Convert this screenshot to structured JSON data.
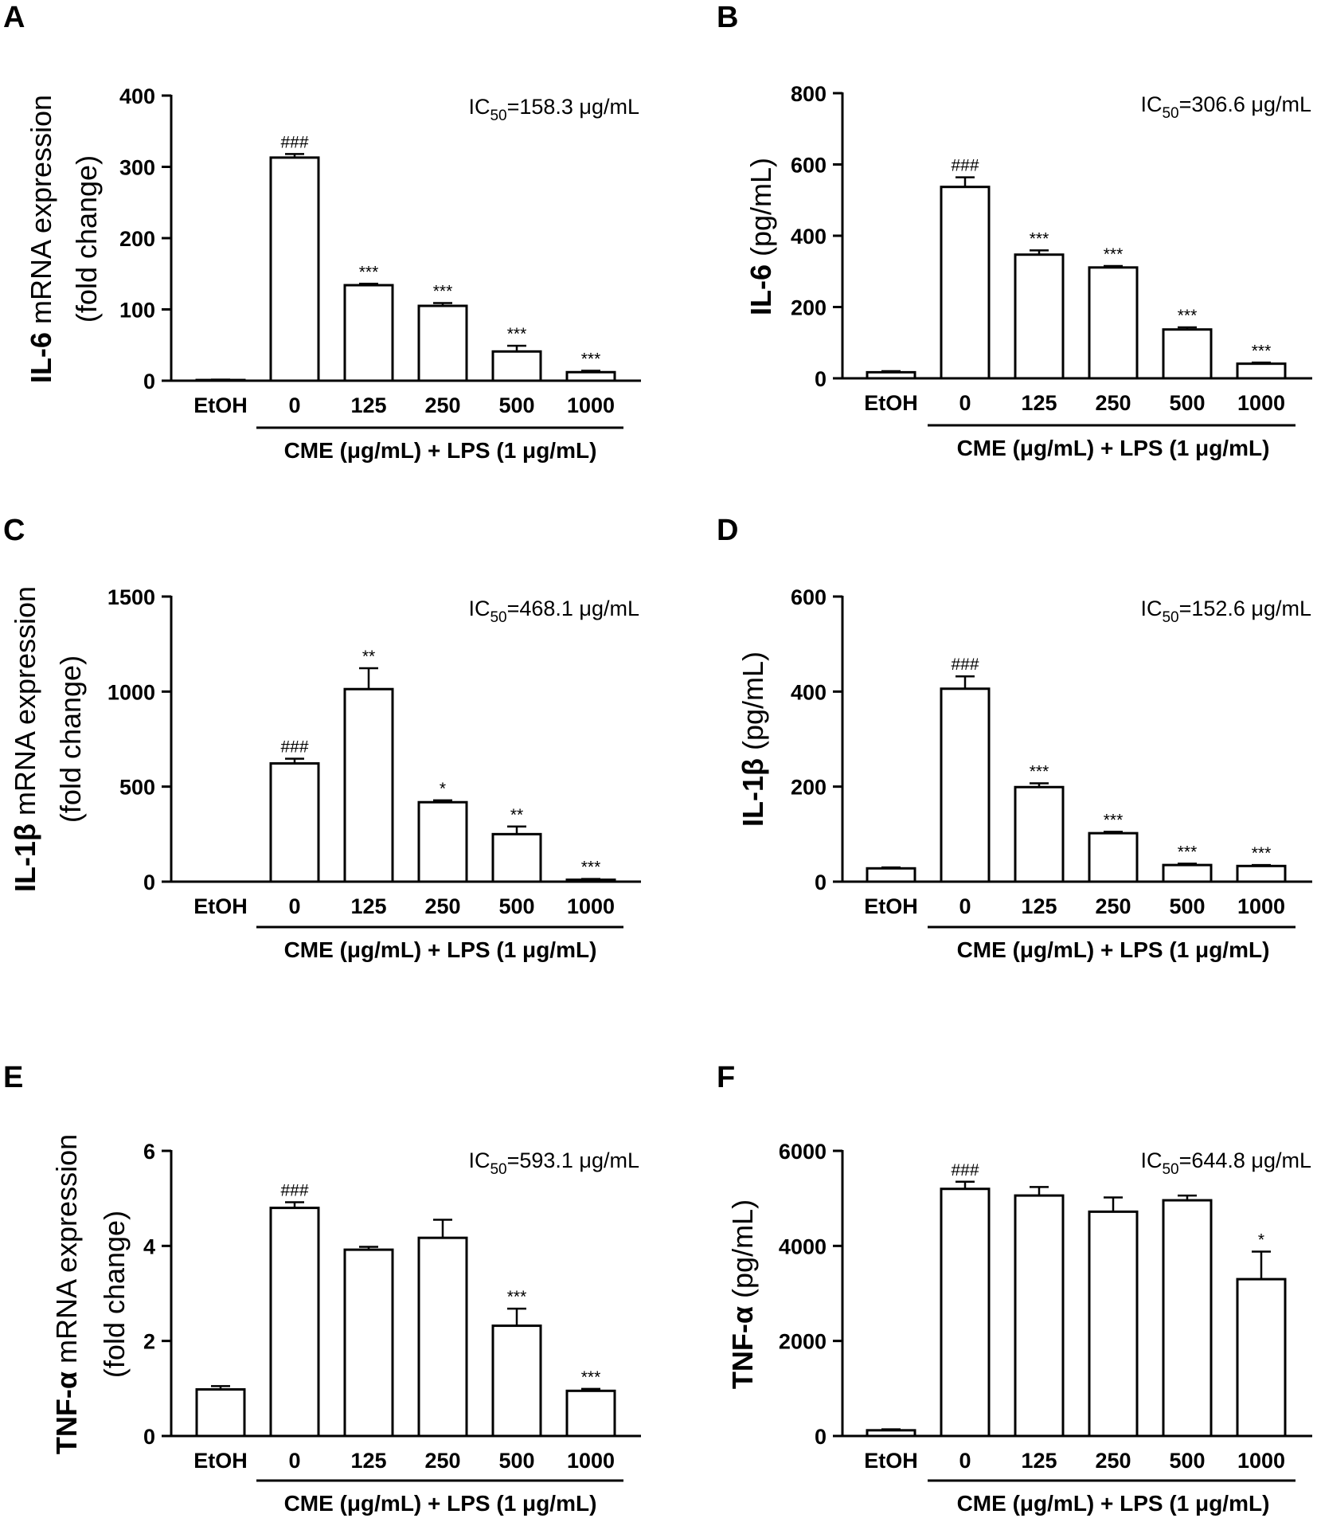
{
  "chart_data": [
    {
      "type": "bar",
      "panel": "A",
      "categories": [
        "EtOH",
        "0",
        "125",
        "250",
        "500",
        "1000"
      ],
      "values": [
        1,
        313,
        134,
        105,
        41,
        12
      ],
      "errors": [
        0.5,
        5,
        2,
        4,
        8,
        2
      ],
      "significance": [
        "",
        "###",
        "***",
        "***",
        "***",
        "***"
      ],
      "ylabel_bold": "IL-6",
      "ylabel_rest": " mRNA expression",
      "ylabel_line2": "(fold change)",
      "ylim": [
        0,
        400
      ],
      "yticks": [
        0,
        100,
        200,
        300,
        400
      ],
      "ic50": {
        "prefix": "IC",
        "sub": "50",
        "value": "=158.3 μg/mL"
      },
      "group_label": "CME (μg/mL) + LPS (1 μg/mL)"
    },
    {
      "type": "bar",
      "panel": "B",
      "categories": [
        "EtOH",
        "0",
        "125",
        "250",
        "500",
        "1000"
      ],
      "values": [
        17,
        537,
        347,
        311,
        137,
        41
      ],
      "errors": [
        3,
        27,
        12,
        4,
        6,
        3
      ],
      "significance": [
        "",
        "###",
        "***",
        "***",
        "***",
        "***"
      ],
      "ylabel_bold": "IL-6",
      "ylabel_rest": " (pg/mL)",
      "ylabel_line2": "",
      "ylim": [
        0,
        800
      ],
      "yticks": [
        0,
        200,
        400,
        600,
        800
      ],
      "ic50": {
        "prefix": "IC",
        "sub": "50",
        "value": "=306.6 μg/mL"
      },
      "group_label": "CME (μg/mL) + LPS (1 μg/mL)"
    },
    {
      "type": "bar",
      "panel": "C",
      "categories": [
        "EtOH",
        "0",
        "125",
        "250",
        "500",
        "1000"
      ],
      "values": [
        0,
        622,
        1013,
        418,
        250,
        10
      ],
      "errors": [
        0,
        25,
        110,
        10,
        40,
        4
      ],
      "significance": [
        "",
        "###",
        "**",
        "*",
        "**",
        "***"
      ],
      "ylabel_bold": "IL-1β",
      "ylabel_rest": " mRNA expression",
      "ylabel_line2": "(fold change)",
      "ylim": [
        0,
        1500
      ],
      "yticks": [
        0,
        500,
        1000,
        1500
      ],
      "ic50": {
        "prefix": "IC",
        "sub": "50",
        "value": "=468.1 μg/mL"
      },
      "group_label": "CME (μg/mL) + LPS (1 μg/mL)"
    },
    {
      "type": "bar",
      "panel": "D",
      "categories": [
        "EtOH",
        "0",
        "125",
        "250",
        "500",
        "1000"
      ],
      "values": [
        28,
        406,
        199,
        102,
        35,
        33
      ],
      "errors": [
        2,
        26,
        8,
        3,
        3,
        2
      ],
      "significance": [
        "",
        "###",
        "***",
        "***",
        "***",
        "***"
      ],
      "ylabel_bold": "IL-1β",
      "ylabel_rest": " (pg/mL)",
      "ylabel_line2": "",
      "ylim": [
        0,
        600
      ],
      "yticks": [
        0,
        200,
        400,
        600
      ],
      "ic50": {
        "prefix": "IC",
        "sub": "50",
        "value": "=152.6 μg/mL"
      },
      "group_label": "CME (μg/mL) + LPS (1 μg/mL)"
    },
    {
      "type": "bar",
      "panel": "E",
      "categories": [
        "EtOH",
        "0",
        "125",
        "250",
        "500",
        "1000"
      ],
      "values": [
        0.98,
        4.8,
        3.92,
        4.17,
        2.32,
        0.95
      ],
      "errors": [
        0.07,
        0.12,
        0.06,
        0.38,
        0.36,
        0.04
      ],
      "significance": [
        "",
        "###",
        "",
        "",
        "***",
        "***"
      ],
      "ylabel_bold": "TNF-α",
      "ylabel_rest": " mRNA expression",
      "ylabel_line2": "(fold change)",
      "ylim": [
        0,
        6
      ],
      "yticks": [
        0,
        2,
        4,
        6
      ],
      "ic50": {
        "prefix": "IC",
        "sub": "50",
        "value": "=593.1 μg/mL"
      },
      "group_label": "CME (μg/mL) + LPS (1 μg/mL)"
    },
    {
      "type": "bar",
      "panel": "F",
      "categories": [
        "EtOH",
        "0",
        "125",
        "250",
        "500",
        "1000"
      ],
      "values": [
        120,
        5200,
        5060,
        4720,
        4960,
        3300
      ],
      "errors": [
        20,
        150,
        180,
        300,
        100,
        580
      ],
      "significance": [
        "",
        "###",
        "",
        "",
        "",
        "*"
      ],
      "ylabel_bold": "TNF-α",
      "ylabel_rest": " (pg/mL)",
      "ylabel_line2": "",
      "ylim": [
        0,
        6000
      ],
      "yticks": [
        0,
        2000,
        4000,
        6000
      ],
      "ic50": {
        "prefix": "IC",
        "sub": "50",
        "value": "=644.8 μg/mL"
      },
      "group_label": "CME (μg/mL) + LPS (1 μg/mL)"
    }
  ]
}
